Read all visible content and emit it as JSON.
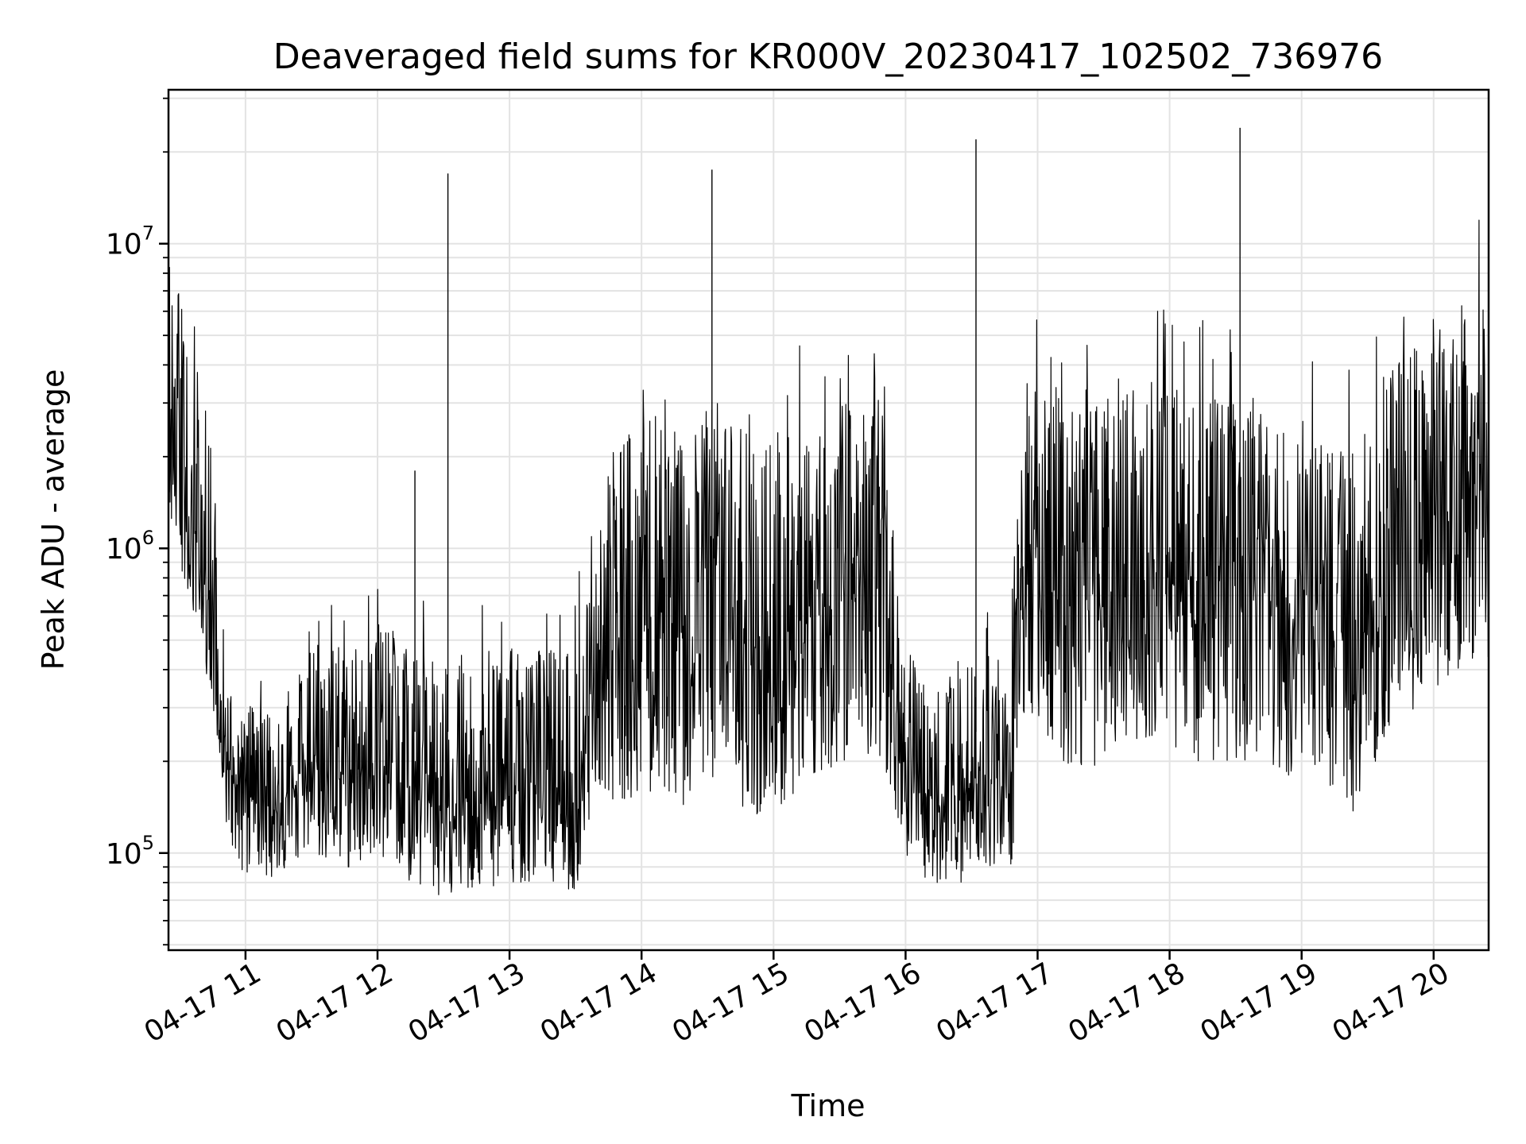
{
  "chart_data": {
    "type": "line",
    "title": "Deaveraged field sums for KR000V_20230417_102502_736976",
    "xlabel": "Time",
    "ylabel": "Peak ADU - average",
    "yscale": "log",
    "ylim": [
      48000,
      32000000
    ],
    "xlim": [
      "2023-04-17 10:25",
      "2023-04-17 20:25"
    ],
    "x_ticks": [
      "04-17 11",
      "04-17 12",
      "04-17 13",
      "04-17 14",
      "04-17 15",
      "04-17 16",
      "04-17 17",
      "04-17 18",
      "04-17 19",
      "04-17 20"
    ],
    "y_ticks": [
      {
        "base": "10",
        "exp": "5",
        "value": 100000
      },
      {
        "base": "10",
        "exp": "6",
        "value": 1000000
      },
      {
        "base": "10",
        "exp": "7",
        "value": 10000000
      }
    ],
    "grid": true,
    "line_color": "#000000",
    "series": [
      {
        "x": [
          "2023-04-17 10:25",
          "2023-04-17 10:35",
          "2023-04-17 10:45",
          "2023-04-17 10:52",
          "2023-04-17 11:00",
          "2023-04-17 11:15",
          "2023-04-17 11:30",
          "2023-04-17 11:45",
          "2023-04-17 12:00",
          "2023-04-17 12:15",
          "2023-04-17 12:30",
          "2023-04-17 12:45",
          "2023-04-17 13:00",
          "2023-04-17 13:15",
          "2023-04-17 13:30",
          "2023-04-17 13:40",
          "2023-04-17 13:50",
          "2023-04-17 14:05",
          "2023-04-17 14:20",
          "2023-04-17 14:35",
          "2023-04-17 14:50",
          "2023-04-17 15:05",
          "2023-04-17 15:20",
          "2023-04-17 15:35",
          "2023-04-17 15:50",
          "2023-04-17 15:58",
          "2023-04-17 16:10",
          "2023-04-17 16:25",
          "2023-04-17 16:40",
          "2023-04-17 16:48",
          "2023-04-17 16:55",
          "2023-04-17 17:10",
          "2023-04-17 17:25",
          "2023-04-17 17:40",
          "2023-04-17 17:55",
          "2023-04-17 18:10",
          "2023-04-17 18:25",
          "2023-04-17 18:40",
          "2023-04-17 18:55",
          "2023-04-17 19:10",
          "2023-04-17 19:25",
          "2023-04-17 19:40",
          "2023-04-17 19:55",
          "2023-04-17 20:10",
          "2023-04-17 20:25"
        ],
        "y": [
          2500000,
          1200000,
          600000,
          180000,
          150000,
          140000,
          200000,
          170000,
          200000,
          160000,
          140000,
          150000,
          160000,
          160000,
          150000,
          500000,
          500000,
          550000,
          500000,
          650000,
          450000,
          500000,
          600000,
          700000,
          700000,
          200000,
          150000,
          160000,
          180000,
          170000,
          900000,
          700000,
          650000,
          750000,
          800000,
          700000,
          700000,
          700000,
          600000,
          600000,
          450000,
          900000,
          1100000,
          1400000,
          1500000
        ],
        "noise_high": [
          4.0,
          4.0,
          4.0,
          2.0,
          2.0,
          2.0,
          3.0,
          3.0,
          3.0,
          3.0,
          3.0,
          3.0,
          3.0,
          3.0,
          3.0,
          4.0,
          4.5,
          5.0,
          5.0,
          5.0,
          5.0,
          5.0,
          4.5,
          4.5,
          4.5,
          2.5,
          2.5,
          2.5,
          2.5,
          2.5,
          4.0,
          4.5,
          4.5,
          4.5,
          4.5,
          4.5,
          4.5,
          4.5,
          4.5,
          4.5,
          4.5,
          4.5,
          4.5,
          4.5,
          4.5
        ],
        "noise_low": [
          2.0,
          2.0,
          2.0,
          1.8,
          1.8,
          1.8,
          2.0,
          2.0,
          2.0,
          2.0,
          2.0,
          2.0,
          2.0,
          2.0,
          2.0,
          3.0,
          3.5,
          3.5,
          3.5,
          3.5,
          3.5,
          3.5,
          3.5,
          3.5,
          3.5,
          2.0,
          2.0,
          2.0,
          2.0,
          2.0,
          3.0,
          3.5,
          3.5,
          3.5,
          3.5,
          3.5,
          3.5,
          3.5,
          3.5,
          3.5,
          3.5,
          3.5,
          3.5,
          3.5,
          3.5
        ]
      }
    ],
    "spikes": [
      {
        "x": "2023-04-17 12:17",
        "y": 1800000
      },
      {
        "x": "2023-04-17 12:32",
        "y": 17000000
      },
      {
        "x": "2023-04-17 14:32",
        "y": 17500000
      },
      {
        "x": "2023-04-17 16:32",
        "y": 22000000
      },
      {
        "x": "2023-04-17 18:32",
        "y": 24000000
      }
    ]
  }
}
